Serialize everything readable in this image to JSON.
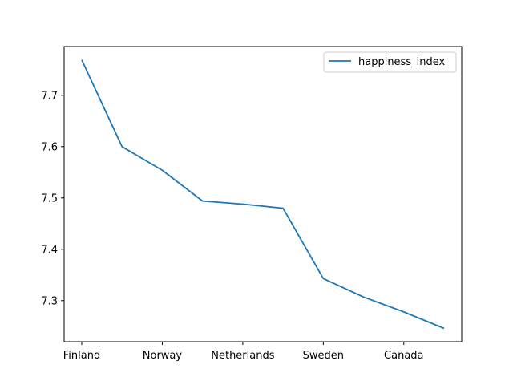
{
  "chart_data": {
    "type": "line",
    "title": "",
    "xlabel": "",
    "ylabel": "",
    "x": [
      "Finland",
      "",
      "Norway",
      "",
      "Netherlands",
      "",
      "Sweden",
      "",
      "Canada",
      ""
    ],
    "x_tick_labels": [
      "Finland",
      "Norway",
      "Netherlands",
      "Sweden",
      "Canada"
    ],
    "x_tick_indices": [
      0,
      2,
      4,
      6,
      8
    ],
    "series": [
      {
        "name": "happiness_index",
        "color": "#1f77b4",
        "values": [
          7.769,
          7.6,
          7.554,
          7.494,
          7.488,
          7.48,
          7.343,
          7.307,
          7.278,
          7.246
        ]
      }
    ],
    "y_ticks": [
      7.3,
      7.4,
      7.5,
      7.6,
      7.7
    ],
    "ylim": [
      7.22,
      7.795
    ],
    "grid": false,
    "legend": "top-right"
  }
}
